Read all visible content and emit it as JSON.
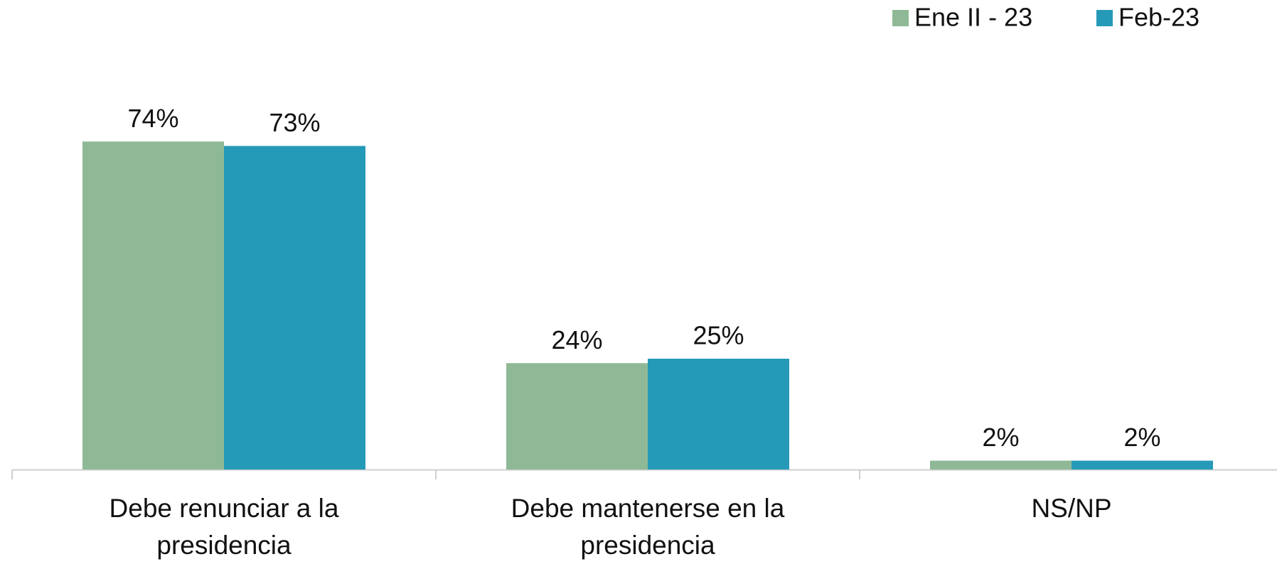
{
  "chart_data": {
    "type": "bar",
    "categories": [
      "Debe renunciar a la presidencia",
      "Debe mantenerse en la presidencia",
      "NS/NP"
    ],
    "series": [
      {
        "name": "Ene II - 23",
        "color": "#8fb996",
        "values": [
          74,
          24,
          2
        ],
        "value_labels": [
          "74%",
          "24%",
          "2%"
        ]
      },
      {
        "name": "Feb-23",
        "color": "#259ab8",
        "values": [
          73,
          25,
          2
        ],
        "value_labels": [
          "73%",
          "25%",
          "2%"
        ]
      }
    ],
    "ylim": [
      0,
      100
    ],
    "legend": "top-right"
  }
}
